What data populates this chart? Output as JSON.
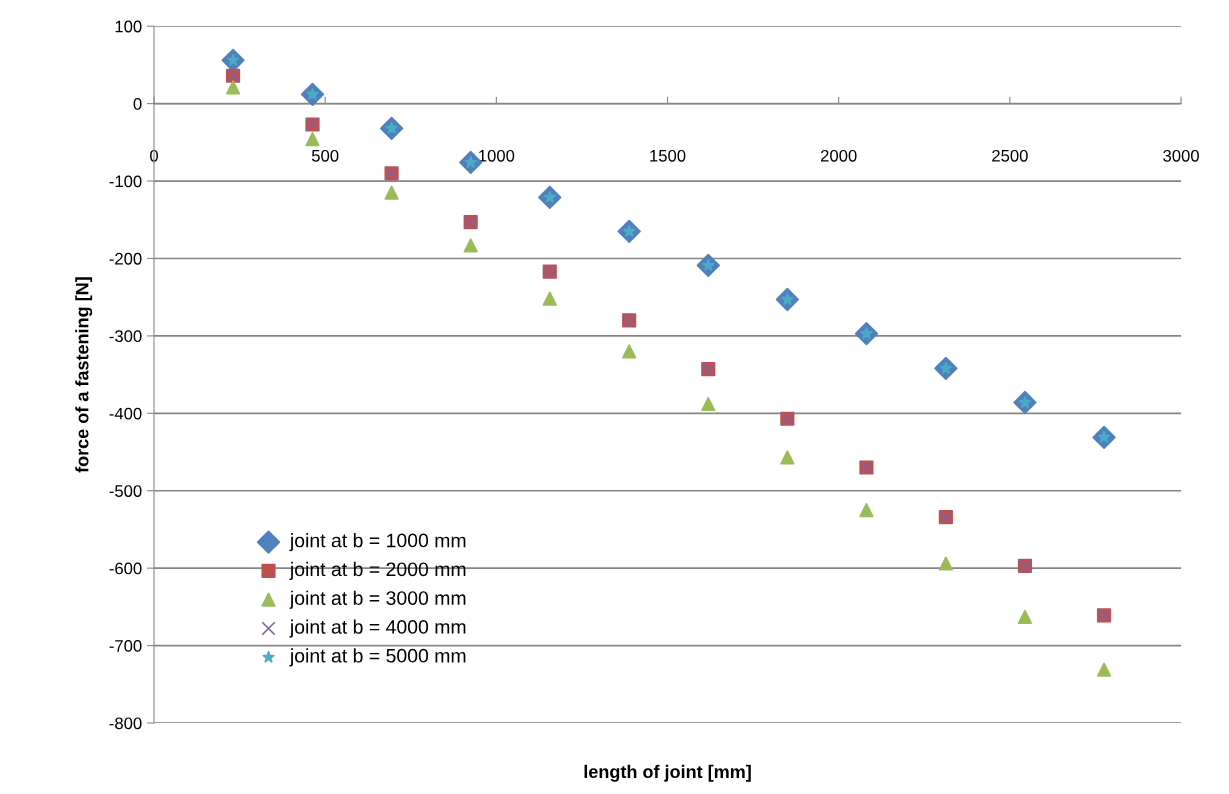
{
  "chart_data": {
    "type": "scatter",
    "xlabel": "length of joint [mm]",
    "ylabel": "force of a fastening [N]",
    "x": [
      231,
      463,
      694,
      925,
      1156,
      1388,
      1619,
      1850,
      2081,
      2313,
      2544,
      2775
    ],
    "series": [
      {
        "name": "joint at b = 1000 mm",
        "color": "#4f81bd",
        "marker": "diamond",
        "values": [
          56,
          12,
          -32,
          -76,
          -121,
          -165,
          -209,
          -253,
          -297,
          -342,
          -386,
          -431
        ]
      },
      {
        "name": "joint at b = 2000 mm",
        "color": "#c0504d",
        "marker": "square",
        "values": [
          36,
          -27,
          -90,
          -153,
          -217,
          -280,
          -343,
          -407,
          -470,
          -534,
          -597,
          -661
        ]
      },
      {
        "name": "joint at b = 3000 mm",
        "color": "#9bbb59",
        "marker": "triangle",
        "values": [
          21,
          -46,
          -115,
          -183,
          -252,
          -320,
          -388,
          -457,
          -525,
          -594,
          -663,
          -731
        ]
      },
      {
        "name": "joint at b = 4000 mm",
        "color": "#8064a2",
        "marker": "cross",
        "values": [
          36,
          -27,
          -90,
          -153,
          -217,
          -280,
          -343,
          -407,
          -470,
          -534,
          -597,
          -661
        ]
      },
      {
        "name": "joint at b = 5000 mm",
        "color": "#4bacc6",
        "marker": "star",
        "values": [
          56,
          12,
          -32,
          -76,
          -121,
          -165,
          -209,
          -253,
          -297,
          -342,
          -386,
          -431
        ]
      }
    ],
    "xlim": [
      0,
      3000
    ],
    "xticks": [
      0,
      500,
      1000,
      1500,
      2000,
      2500,
      3000
    ],
    "ylim": [
      -800,
      100
    ],
    "yticks": [
      -800,
      -700,
      -600,
      -500,
      -400,
      -300,
      -200,
      -100,
      0,
      100
    ],
    "grid": "y",
    "legend": "bottom left"
  }
}
